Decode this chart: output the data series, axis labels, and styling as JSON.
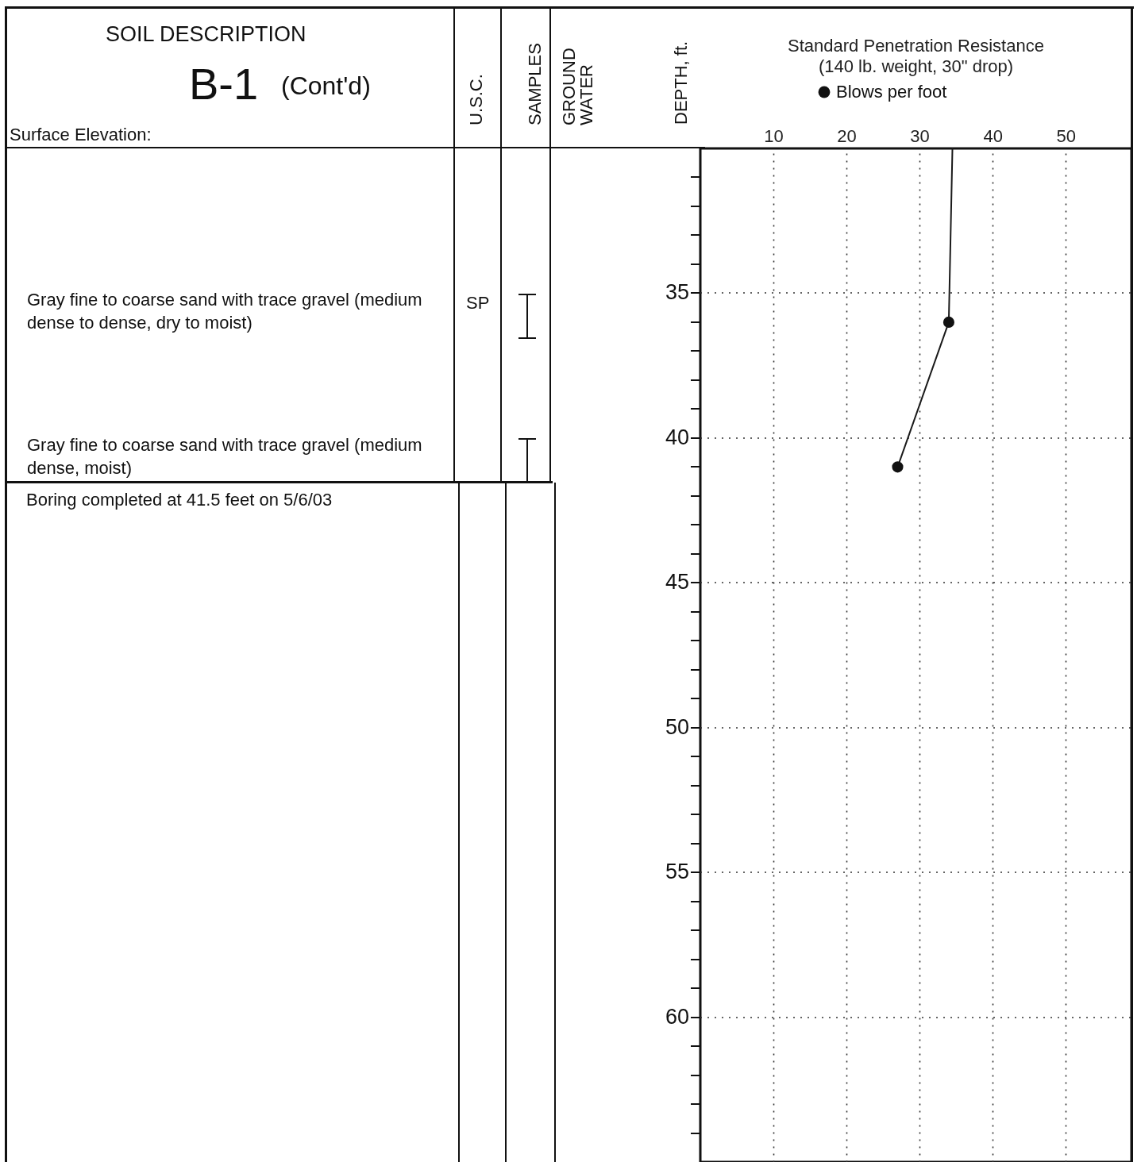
{
  "chart_data": {
    "type": "line",
    "title": "Standard Penetration Resistance",
    "subtitle": "(140 lb. weight, 30\" drop)",
    "ylabel": "DEPTH, ft.",
    "xlim": [
      0,
      59
    ],
    "xticks": [
      10,
      20,
      30,
      40,
      50
    ],
    "ylim": [
      65,
      30
    ],
    "yticks": [
      {
        "value": 31,
        "label": null
      },
      {
        "value": 32,
        "label": null
      },
      {
        "value": 33,
        "label": null
      },
      {
        "value": 34,
        "label": null
      },
      35,
      {
        "value": 36,
        "label": null
      },
      {
        "value": 37,
        "label": null
      },
      {
        "value": 38,
        "label": null
      },
      {
        "value": 39,
        "label": null
      },
      40,
      {
        "value": 41,
        "label": null
      },
      {
        "value": 42,
        "label": null
      },
      {
        "value": 43,
        "label": null
      },
      {
        "value": 44,
        "label": null
      },
      45,
      {
        "value": 46,
        "label": null
      },
      {
        "value": 47,
        "label": null
      },
      {
        "value": 48,
        "label": null
      },
      {
        "value": 49,
        "label": null
      },
      50,
      {
        "value": 51,
        "label": null
      },
      {
        "value": 52,
        "label": null
      },
      {
        "value": 53,
        "label": null
      },
      {
        "value": 54,
        "label": null
      },
      55,
      {
        "value": 56,
        "label": null
      },
      {
        "value": 57,
        "label": null
      },
      {
        "value": 58,
        "label": null
      },
      {
        "value": 59,
        "label": null
      },
      60,
      {
        "value": 61,
        "label": null
      },
      {
        "value": 62,
        "label": null
      },
      {
        "value": 63,
        "label": null
      },
      {
        "value": 64,
        "label": null
      }
    ],
    "grid": true,
    "legend": "top",
    "series": [
      {
        "color": "#1a1a1a",
        "x": [
          34.5,
          34,
          27
        ],
        "values": [
          30,
          36,
          41
        ],
        "marker": "none"
      },
      {
        "type": "scatter",
        "name": "Blows per foot",
        "color": "#111111",
        "x": [
          34,
          27
        ],
        "values": [
          36,
          41
        ],
        "marker": "circle"
      }
    ],
    "annotations": [
      "SOIL DESCRIPTION",
      "B-1",
      "(Cont'd)",
      "Surface Elevation:",
      "U.S.C.",
      "SAMPLES",
      "GROUND WATER",
      "Gray fine to coarse sand with trace gravel (medium dense to dense, dry to moist)",
      "SP",
      "Gray fine to coarse sand with trace gravel (medium dense, moist)",
      "Boring completed at 41.5 feet on 5/6/03"
    ]
  }
}
